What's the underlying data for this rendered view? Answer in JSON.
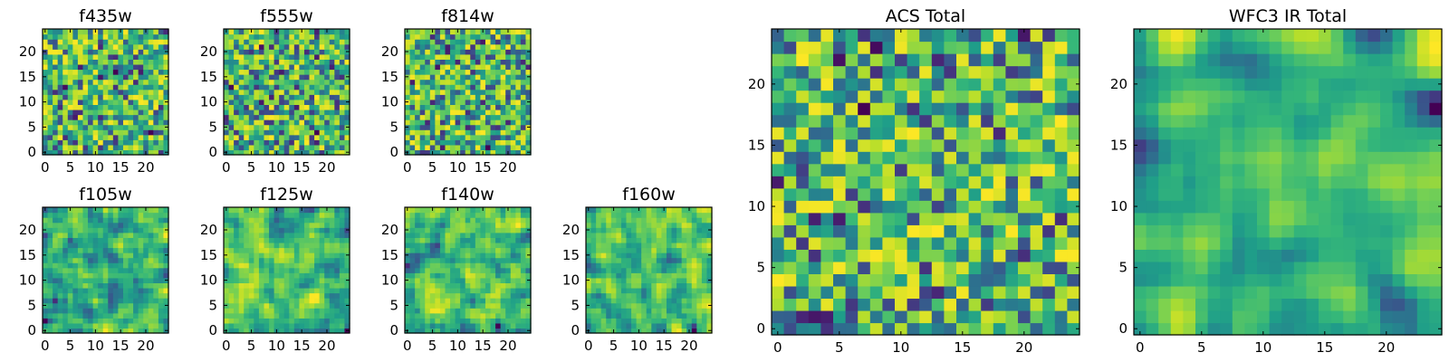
{
  "figure": {
    "background": "#ffffff",
    "colormap": "viridis"
  },
  "chart_data": [
    {
      "type": "heatmap",
      "title": "f435w",
      "xlim": [
        0,
        24
      ],
      "ylim": [
        0,
        24
      ],
      "xticks": [
        0,
        5,
        10,
        15,
        20
      ],
      "yticks": [
        0,
        5,
        10,
        15,
        20
      ],
      "grid": false,
      "seed": 11,
      "smoothness": 0
    },
    {
      "type": "heatmap",
      "title": "f555w",
      "xlim": [
        0,
        24
      ],
      "ylim": [
        0,
        24
      ],
      "xticks": [
        0,
        5,
        10,
        15,
        20
      ],
      "yticks": [
        0,
        5,
        10,
        15,
        20
      ],
      "grid": false,
      "seed": 23,
      "smoothness": 0
    },
    {
      "type": "heatmap",
      "title": "f814w",
      "xlim": [
        0,
        24
      ],
      "ylim": [
        0,
        24
      ],
      "xticks": [
        0,
        5,
        10,
        15,
        20
      ],
      "yticks": [
        0,
        5,
        10,
        15,
        20
      ],
      "grid": false,
      "seed": 37,
      "smoothness": 0
    },
    {
      "type": "heatmap",
      "title": "f105w",
      "xlim": [
        0,
        24
      ],
      "ylim": [
        0,
        24
      ],
      "xticks": [
        0,
        5,
        10,
        15,
        20
      ],
      "yticks": [
        0,
        5,
        10,
        15,
        20
      ],
      "grid": false,
      "seed": 41,
      "smoothness": 1
    },
    {
      "type": "heatmap",
      "title": "f125w",
      "xlim": [
        0,
        24
      ],
      "ylim": [
        0,
        24
      ],
      "xticks": [
        0,
        5,
        10,
        15,
        20
      ],
      "yticks": [
        0,
        5,
        10,
        15,
        20
      ],
      "grid": false,
      "seed": 53,
      "smoothness": 1
    },
    {
      "type": "heatmap",
      "title": "f140w",
      "xlim": [
        0,
        24
      ],
      "ylim": [
        0,
        24
      ],
      "xticks": [
        0,
        5,
        10,
        15,
        20
      ],
      "yticks": [
        0,
        5,
        10,
        15,
        20
      ],
      "grid": false,
      "seed": 67,
      "smoothness": 1
    },
    {
      "type": "heatmap",
      "title": "f160w",
      "xlim": [
        0,
        24
      ],
      "ylim": [
        0,
        24
      ],
      "xticks": [
        0,
        5,
        10,
        15,
        20
      ],
      "yticks": [
        0,
        5,
        10,
        15,
        20
      ],
      "grid": false,
      "seed": 79,
      "smoothness": 1
    },
    {
      "type": "heatmap",
      "title": "ACS Total",
      "xlim": [
        0,
        24
      ],
      "ylim": [
        0,
        24
      ],
      "xticks": [
        0,
        5,
        10,
        15,
        20
      ],
      "yticks": [
        0,
        5,
        10,
        15,
        20
      ],
      "grid": false,
      "seed": 97,
      "smoothness": 0
    },
    {
      "type": "heatmap",
      "title": "WFC3 IR Total",
      "xlim": [
        0,
        24
      ],
      "ylim": [
        0,
        24
      ],
      "xticks": [
        0,
        5,
        10,
        15,
        20
      ],
      "yticks": [
        0,
        5,
        10,
        15,
        20
      ],
      "grid": false,
      "seed": 113,
      "smoothness": 2
    }
  ]
}
